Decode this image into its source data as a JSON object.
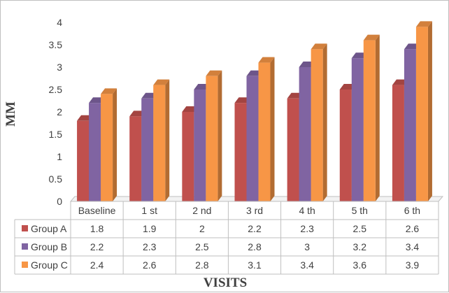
{
  "chart_data": {
    "type": "bar",
    "xlabel": "VISITS",
    "ylabel": "MM",
    "ylim": [
      0,
      4
    ],
    "yticks": [
      "0",
      "0.5",
      "1",
      "1.5",
      "2",
      "2.5",
      "3",
      "3.5",
      "4"
    ],
    "categories": [
      "Baseline",
      "1 st",
      "2 nd",
      "3 rd",
      "4 th",
      "5 th",
      "6 th"
    ],
    "series": [
      {
        "name": "Group A",
        "values": [
          1.8,
          1.9,
          2,
          2.2,
          2.3,
          2.5,
          2.6
        ],
        "color": "#c0504d",
        "labels": [
          "1.8",
          "1.9",
          "2",
          "2.2",
          "2.3",
          "2.5",
          "2.6"
        ]
      },
      {
        "name": "Group B",
        "values": [
          2.2,
          2.3,
          2.5,
          2.8,
          3,
          3.2,
          3.4
        ],
        "color": "#8064a2",
        "labels": [
          "2.2",
          "2.3",
          "2.5",
          "2.8",
          "3",
          "3.2",
          "3.4"
        ]
      },
      {
        "name": "Group C",
        "values": [
          2.4,
          2.6,
          2.8,
          3.1,
          3.4,
          3.6,
          3.9
        ],
        "color": "#f79646",
        "labels": [
          "2.4",
          "2.6",
          "2.8",
          "3.1",
          "3.4",
          "3.6",
          "3.9"
        ]
      }
    ],
    "grid": false,
    "legend": "data-table"
  }
}
